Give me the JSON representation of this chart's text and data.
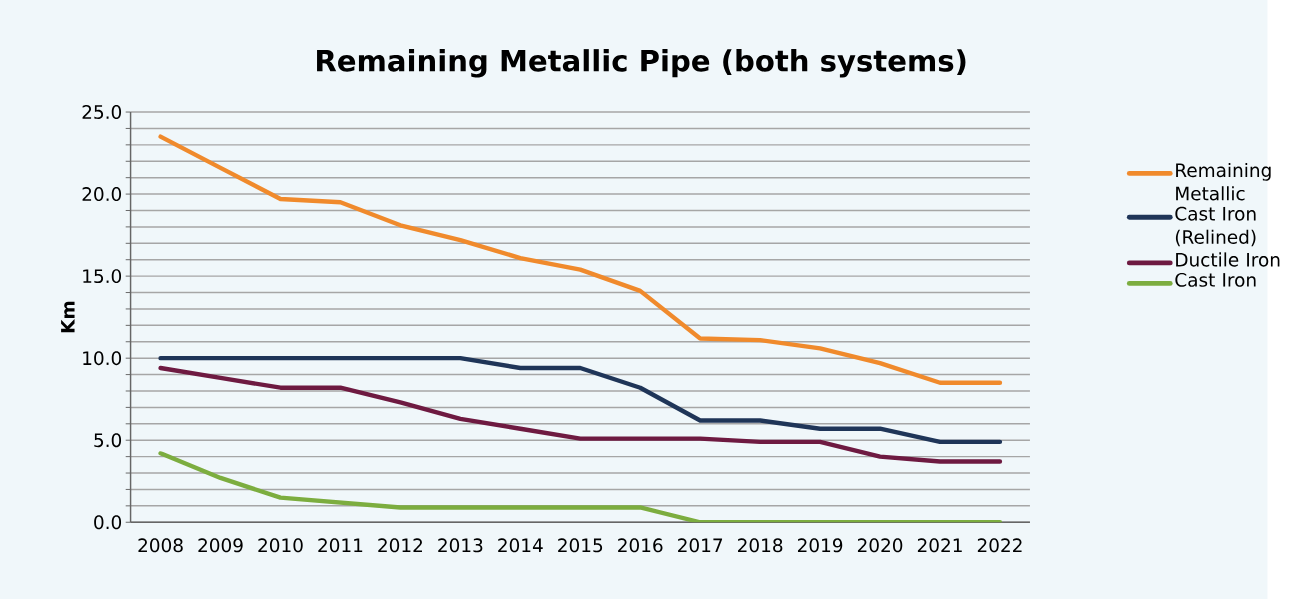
{
  "chart_data": {
    "type": "line",
    "title": "Remaining Metallic Pipe (both systems)",
    "ylabel": "Km",
    "categories": [
      "2008",
      "2009",
      "2010",
      "2011",
      "2012",
      "2013",
      "2014",
      "2015",
      "2016",
      "2017",
      "2018",
      "2019",
      "2020",
      "2021",
      "2022"
    ],
    "series": [
      {
        "name": "Remaining Metallic",
        "color": "#f08a2c",
        "values": [
          23.5,
          21.6,
          19.7,
          19.5,
          18.1,
          17.2,
          16.1,
          15.4,
          14.1,
          11.2,
          11.1,
          10.6,
          9.7,
          8.5,
          8.5
        ]
      },
      {
        "name": "Cast Iron (Relined)",
        "color": "#1f3558",
        "values": [
          10.0,
          10.0,
          10.0,
          10.0,
          10.0,
          10.0,
          9.4,
          9.4,
          8.2,
          6.2,
          6.2,
          5.7,
          5.7,
          4.9,
          4.9
        ]
      },
      {
        "name": "Ductile Iron",
        "color": "#6e1a41",
        "values": [
          9.4,
          8.8,
          8.2,
          8.2,
          7.3,
          6.3,
          5.7,
          5.1,
          5.1,
          5.1,
          4.9,
          4.9,
          4.0,
          3.7,
          3.7
        ]
      },
      {
        "name": "Cast Iron",
        "color": "#7cad3f",
        "values": [
          4.2,
          2.7,
          1.5,
          1.2,
          0.9,
          0.9,
          0.9,
          0.9,
          0.9,
          0.0,
          0.0,
          0.0,
          0.0,
          0.0,
          0.0
        ]
      }
    ],
    "ylim": [
      0,
      25
    ],
    "yticks": [
      {
        "value": 0,
        "label": "0.0"
      },
      {
        "value": 1,
        "label": null
      },
      {
        "value": 2,
        "label": null
      },
      {
        "value": 3,
        "label": null
      },
      {
        "value": 4,
        "label": null
      },
      {
        "value": 5,
        "label": "5.0"
      },
      {
        "value": 6,
        "label": null
      },
      {
        "value": 7,
        "label": null
      },
      {
        "value": 8,
        "label": null
      },
      {
        "value": 9,
        "label": null
      },
      {
        "value": 10,
        "label": "10.0"
      },
      {
        "value": 11,
        "label": null
      },
      {
        "value": 12,
        "label": null
      },
      {
        "value": 13,
        "label": null
      },
      {
        "value": 14,
        "label": null
      },
      {
        "value": 15,
        "label": "15.0"
      },
      {
        "value": 16,
        "label": null
      },
      {
        "value": 17,
        "label": null
      },
      {
        "value": 18,
        "label": null
      },
      {
        "value": 19,
        "label": null
      },
      {
        "value": 20,
        "label": "20.0"
      },
      {
        "value": 21,
        "label": null
      },
      {
        "value": 22,
        "label": null
      },
      {
        "value": 23,
        "label": null
      },
      {
        "value": 24,
        "label": null
      },
      {
        "value": 25,
        "label": "25.0"
      }
    ],
    "grid": "y",
    "legend": "right"
  }
}
